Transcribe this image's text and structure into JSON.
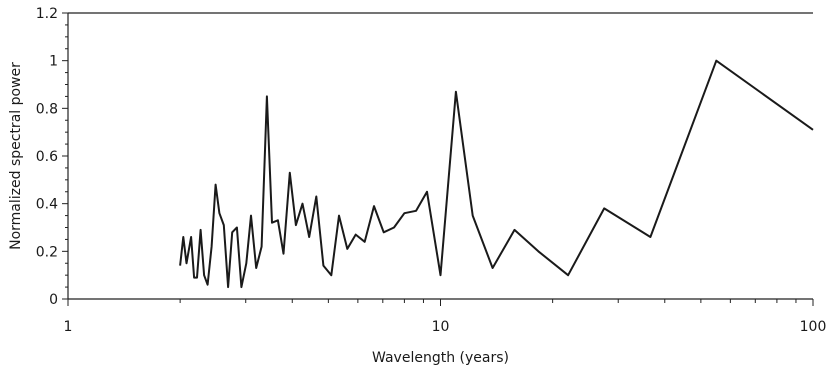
{
  "chart_data": {
    "type": "line",
    "title": "",
    "xlabel": "Wavelength (years)",
    "ylabel": "Normalized spectral power",
    "x_scale": "log",
    "xlim": [
      1,
      100
    ],
    "ylim": [
      0,
      1.2
    ],
    "grid": false,
    "x_ticks": [
      1,
      10,
      100
    ],
    "x_tick_labels": [
      "1",
      "10",
      "100"
    ],
    "y_ticks": [
      0,
      0.2,
      0.4,
      0.6,
      0.8,
      1.0,
      1.2
    ],
    "y_tick_labels": [
      "0",
      "0.2",
      "0.4",
      "0.6",
      "0.8",
      "1",
      "1.2"
    ],
    "series": [
      {
        "color": "#1a1a1a",
        "x": [
          2.0,
          2.04,
          2.08,
          2.14,
          2.18,
          2.22,
          2.27,
          2.32,
          2.37,
          2.43,
          2.49,
          2.55,
          2.62,
          2.69,
          2.76,
          2.84,
          2.92,
          3.01,
          3.1,
          3.2,
          3.31,
          3.42,
          3.53,
          3.66,
          3.79,
          3.94,
          4.09,
          4.26,
          4.44,
          4.64,
          4.85,
          5.09,
          5.34,
          5.62,
          5.92,
          6.26,
          6.63,
          7.04,
          7.5,
          8.0,
          8.6,
          9.2,
          10.0,
          11.0,
          12.2,
          13.8,
          15.8,
          18.3,
          22.0,
          27.5,
          36.6,
          55.0,
          100.0
        ],
        "y": [
          0.14,
          0.26,
          0.15,
          0.26,
          0.09,
          0.09,
          0.29,
          0.1,
          0.06,
          0.22,
          0.48,
          0.36,
          0.31,
          0.05,
          0.28,
          0.3,
          0.05,
          0.15,
          0.35,
          0.13,
          0.22,
          0.85,
          0.32,
          0.33,
          0.19,
          0.53,
          0.31,
          0.4,
          0.26,
          0.43,
          0.14,
          0.1,
          0.35,
          0.21,
          0.27,
          0.24,
          0.39,
          0.28,
          0.3,
          0.36,
          0.37,
          0.45,
          0.1,
          0.87,
          0.35,
          0.13,
          0.29,
          0.2,
          0.1,
          0.38,
          0.26,
          1.0,
          0.71
        ]
      }
    ]
  }
}
